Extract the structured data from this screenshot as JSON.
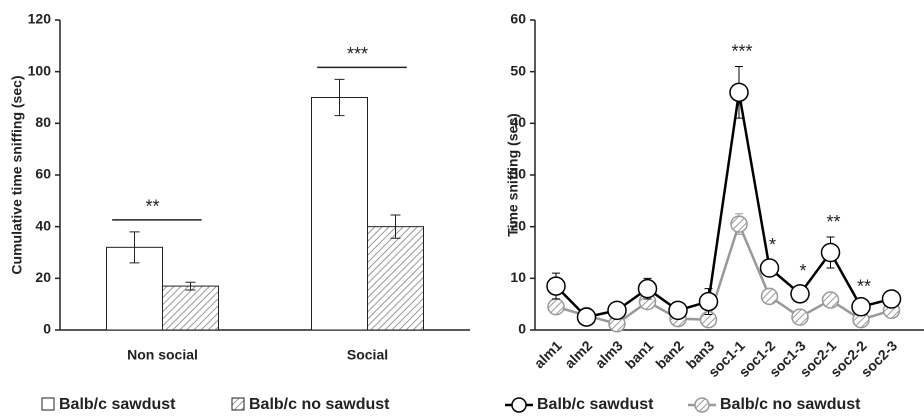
{
  "chart_data": [
    {
      "type": "bar",
      "y_label": "Cumulative time sniffing (sec)",
      "categories": [
        "Non social",
        "Social"
      ],
      "series": [
        {
          "name": "Balb/c sawdust",
          "color": "#ffffff",
          "values": [
            32,
            90
          ],
          "errors": [
            6,
            7
          ]
        },
        {
          "name": "Balb/c no sawdust",
          "color": "#999999",
          "pattern": "hatched",
          "values": [
            17,
            40
          ],
          "errors": [
            1.5,
            4.5
          ]
        }
      ],
      "annotations": [
        "**",
        "***"
      ],
      "ylim": [
        0,
        120
      ],
      "yticks": [
        0,
        20,
        40,
        60,
        80,
        100,
        120
      ]
    },
    {
      "type": "line",
      "y_label": "Time sniffing (sec)",
      "categories": [
        "alm1",
        "alm2",
        "alm3",
        "ban1",
        "ban2",
        "ban3",
        "soc1-1",
        "soc1-2",
        "soc1-3",
        "soc2-1",
        "soc2-2",
        "soc2-3"
      ],
      "series": [
        {
          "name": "Balb/c sawdust",
          "color": "#000000",
          "values": [
            8.5,
            2.5,
            3.8,
            8,
            3.8,
            5.5,
            46,
            12,
            7,
            15,
            4.5,
            6
          ],
          "errors": [
            2.5,
            0.5,
            0.5,
            2,
            0.5,
            2.5,
            5,
            1.5,
            1.5,
            3,
            1,
            1
          ]
        },
        {
          "name": "Balb/c no sawdust",
          "color": "#999999",
          "pattern": "hatched",
          "values": [
            4.5,
            2.8,
            1.2,
            5.5,
            2.2,
            2,
            20.5,
            6.5,
            2.5,
            5.8,
            2,
            3.8
          ],
          "errors": [
            0.8,
            0.4,
            0.3,
            1,
            0.4,
            0.5,
            2,
            1,
            0.5,
            1,
            0.4,
            0.5
          ]
        }
      ],
      "annotations": [
        null,
        null,
        null,
        null,
        null,
        null,
        "***",
        "*",
        "*",
        "**",
        "**",
        null
      ],
      "ylim": [
        0,
        60
      ],
      "yticks": [
        0,
        10,
        20,
        30,
        40,
        50,
        60
      ]
    }
  ]
}
